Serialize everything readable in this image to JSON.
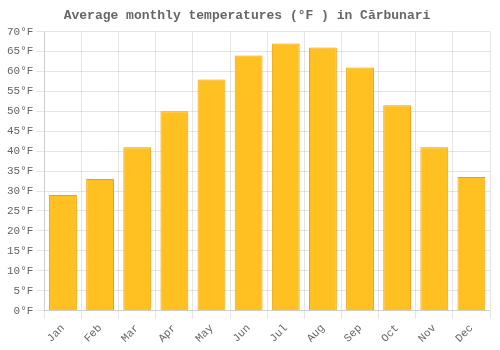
{
  "chart_data": {
    "type": "bar",
    "title": "Average monthly temperatures (°F ) in Cărbunari",
    "categories": [
      "Jan",
      "Feb",
      "Mar",
      "Apr",
      "May",
      "Jun",
      "Jul",
      "Aug",
      "Sep",
      "Oct",
      "Nov",
      "Dec"
    ],
    "values": [
      29,
      33,
      41,
      50,
      58,
      64,
      67,
      66,
      61,
      51.5,
      41,
      33.5
    ],
    "color": "#FFC022",
    "ylim": [
      0,
      70
    ],
    "yticks": [
      {
        "value": 0,
        "label": "0°F"
      },
      {
        "value": 5,
        "label": "5°F"
      },
      {
        "value": 10,
        "label": "10°F"
      },
      {
        "value": 15,
        "label": "15°F"
      },
      {
        "value": 20,
        "label": "20°F"
      },
      {
        "value": 25,
        "label": "25°F"
      },
      {
        "value": 30,
        "label": "30°F"
      },
      {
        "value": 35,
        "label": "35°F"
      },
      {
        "value": 40,
        "label": "40°F"
      },
      {
        "value": 45,
        "label": "45°F"
      },
      {
        "value": 50,
        "label": "50°F"
      },
      {
        "value": 55,
        "label": "55°F"
      },
      {
        "value": 60,
        "label": "60°F"
      },
      {
        "value": 65,
        "label": "65°F"
      },
      {
        "value": 70,
        "label": "70°F"
      }
    ],
    "grid": true
  }
}
